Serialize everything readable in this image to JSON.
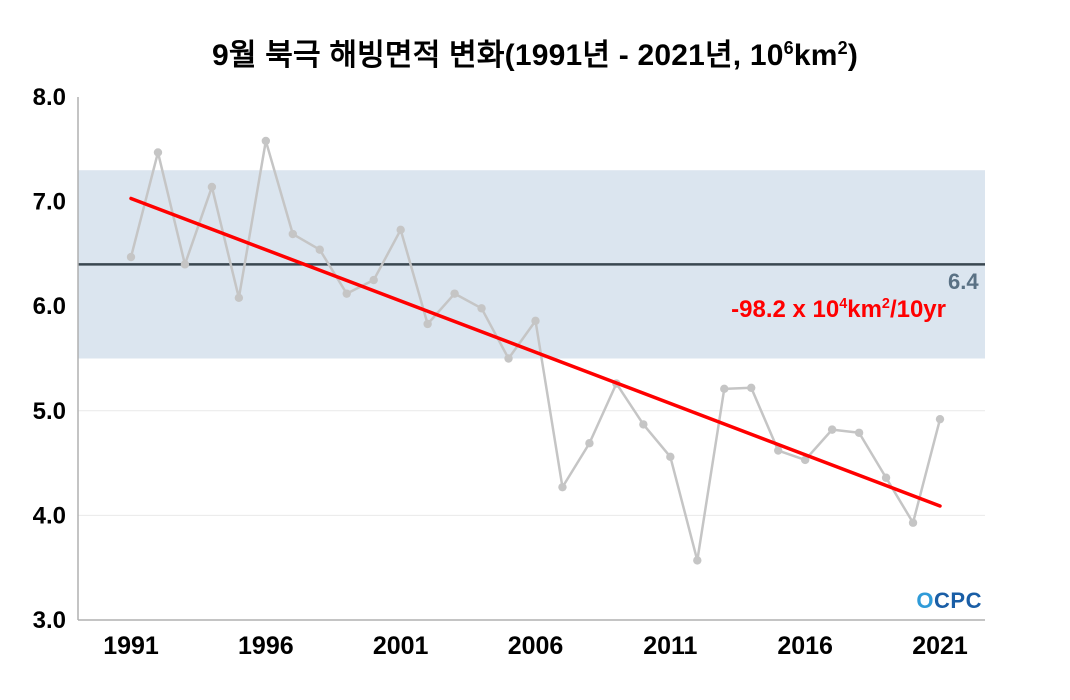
{
  "title": {
    "pre": "9월 북극 해빙면적 변화(1991년 - 2021년, 10",
    "sup1": "6",
    "mid": "km",
    "sup2": "2",
    "post": ")"
  },
  "annotation": {
    "pre": "-98.2 x 10",
    "sup1": "4",
    "mid": "km",
    "sup2": "2",
    "post": "/10yr"
  },
  "mean_label": "6.4",
  "logo": {
    "o": "O",
    "rest": "CPC"
  },
  "colors": {
    "band": "#dbe5ef",
    "series": "#c5c5c5",
    "trend": "#ff0000",
    "mean_line": "#3a4750",
    "axis": "#b0b0b0",
    "grid": "#e9e9e9",
    "tick": "#000000",
    "mean_label": "#5a7184",
    "logo_o": "#2f9bd8",
    "logo_rest": "#1a5ea6"
  },
  "chart_data": {
    "type": "line",
    "title": "9월 북극 해빙면적 변화(1991년 - 2021년, 10⁶km²)",
    "x": [
      1991,
      1992,
      1993,
      1994,
      1995,
      1996,
      1997,
      1998,
      1999,
      2000,
      2001,
      2002,
      2003,
      2004,
      2005,
      2006,
      2007,
      2008,
      2009,
      2010,
      2011,
      2012,
      2013,
      2014,
      2015,
      2016,
      2017,
      2018,
      2019,
      2020,
      2021
    ],
    "values": [
      6.47,
      7.47,
      6.4,
      7.14,
      6.08,
      7.58,
      6.69,
      6.54,
      6.12,
      6.25,
      6.73,
      5.83,
      6.12,
      5.98,
      5.5,
      5.86,
      4.27,
      4.69,
      5.26,
      4.87,
      4.56,
      3.57,
      5.21,
      5.22,
      4.62,
      4.53,
      4.82,
      4.79,
      4.36,
      3.93,
      4.92
    ],
    "ylim": [
      3.0,
      8.0
    ],
    "yticks": [
      3.0,
      4.0,
      5.0,
      6.0,
      7.0,
      8.0
    ],
    "xticks": [
      1991,
      1996,
      2001,
      2006,
      2011,
      2016,
      2021
    ],
    "mean_line": 6.4,
    "band": {
      "low": 5.5,
      "high": 7.3
    },
    "trend_line": {
      "x": [
        1991,
        2021
      ],
      "y": [
        7.03,
        4.09
      ],
      "label": "-98.2 x 10⁴km²/10yr"
    },
    "grid": true,
    "legend": false
  }
}
